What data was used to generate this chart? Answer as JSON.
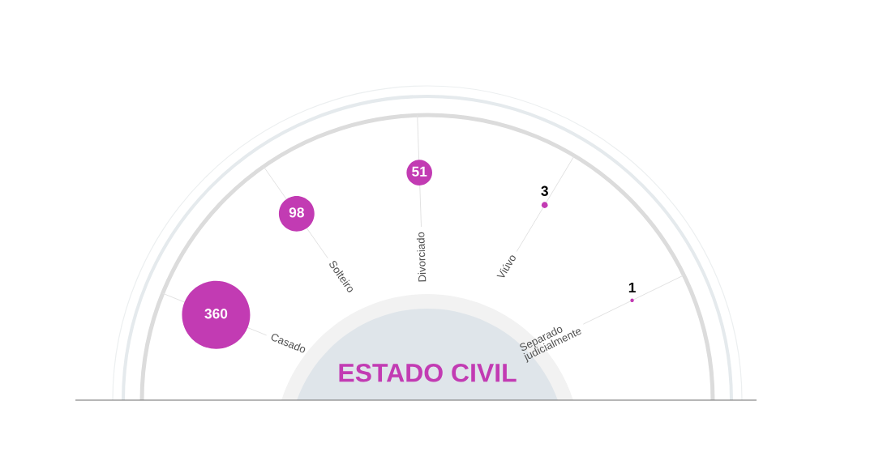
{
  "chart_data": {
    "type": "other",
    "title": "ESTADO CIVIL",
    "categories": [
      "Casado",
      "Solteiro",
      "Divorciado",
      "Viúvo",
      "Separado\njudicialmente"
    ],
    "values": [
      360,
      98,
      51,
      3,
      1
    ],
    "color": "#c23bb3",
    "data_labels": true
  }
}
